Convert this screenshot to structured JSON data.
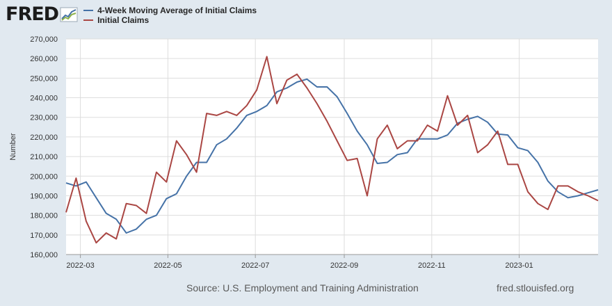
{
  "brand": {
    "logo_text": "FRED",
    "logo_icon": "chart-trend-icon"
  },
  "footer": {
    "source": "Source: U.S. Employment and Training Administration",
    "site": "fred.stlouisfed.org"
  },
  "colors": {
    "background": "#e1e9f0",
    "plot_bg": "#ffffff",
    "grid": "#dddddd",
    "series1": "#4572a7",
    "series2": "#aa4643"
  },
  "chart_data": {
    "type": "line",
    "ylabel": "Number",
    "ylim": [
      160000,
      270000
    ],
    "yticks": [
      160000,
      170000,
      180000,
      190000,
      200000,
      210000,
      220000,
      230000,
      240000,
      250000,
      260000,
      270000
    ],
    "ytick_labels": [
      "160,000",
      "170,000",
      "180,000",
      "190,000",
      "200,000",
      "210,000",
      "220,000",
      "230,000",
      "240,000",
      "250,000",
      "260,000",
      "270,000"
    ],
    "xlim": [
      "2022-02-19",
      "2023-02-25"
    ],
    "xticks": [
      "2022-03-01",
      "2022-05-01",
      "2022-07-01",
      "2022-09-01",
      "2022-11-01",
      "2023-01-01"
    ],
    "xtick_labels": [
      "2022-03",
      "2022-05",
      "2022-07",
      "2022-09",
      "2022-11",
      "2023-01"
    ],
    "grid": true,
    "legend_position": "top-left",
    "x": [
      "2022-02-19",
      "2022-02-26",
      "2022-03-05",
      "2022-03-12",
      "2022-03-19",
      "2022-03-26",
      "2022-04-02",
      "2022-04-09",
      "2022-04-16",
      "2022-04-23",
      "2022-04-30",
      "2022-05-07",
      "2022-05-14",
      "2022-05-21",
      "2022-05-28",
      "2022-06-04",
      "2022-06-11",
      "2022-06-18",
      "2022-06-25",
      "2022-07-02",
      "2022-07-09",
      "2022-07-16",
      "2022-07-23",
      "2022-07-30",
      "2022-08-06",
      "2022-08-13",
      "2022-08-20",
      "2022-08-27",
      "2022-09-03",
      "2022-09-10",
      "2022-09-17",
      "2022-09-24",
      "2022-10-01",
      "2022-10-08",
      "2022-10-15",
      "2022-10-22",
      "2022-10-29",
      "2022-11-05",
      "2022-11-12",
      "2022-11-19",
      "2022-11-26",
      "2022-12-03",
      "2022-12-10",
      "2022-12-17",
      "2022-12-24",
      "2022-12-31",
      "2023-01-07",
      "2023-01-14",
      "2023-01-21",
      "2023-01-28",
      "2023-02-04",
      "2023-02-11",
      "2023-02-18",
      "2023-02-25"
    ],
    "series": [
      {
        "name": "4-Week Moving Average of Initial Claims",
        "values": [
          196500,
          195000,
          197000,
          189000,
          181000,
          178000,
          171000,
          173000,
          178000,
          180000,
          188500,
          191000,
          200000,
          207000,
          207000,
          216000,
          219000,
          224500,
          231000,
          233000,
          236000,
          243000,
          245000,
          248000,
          249500,
          245500,
          245500,
          240500,
          232000,
          223000,
          216000,
          206500,
          207000,
          211000,
          212000,
          219000,
          219000,
          219000,
          221000,
          227000,
          229000,
          230500,
          227500,
          221500,
          221000,
          214500,
          213000,
          207000,
          197500,
          192000,
          189000,
          190000,
          191500,
          193000
        ]
      },
      {
        "name": "Initial Claims",
        "values": [
          181500,
          199000,
          177000,
          166000,
          171000,
          168000,
          186000,
          185000,
          181000,
          202000,
          197000,
          218000,
          211000,
          202000,
          232000,
          231000,
          233000,
          231000,
          236000,
          244000,
          261000,
          237000,
          249000,
          252000,
          245000,
          237000,
          228000,
          218000,
          208000,
          209000,
          190000,
          219000,
          226000,
          214000,
          218000,
          218000,
          226000,
          223000,
          241000,
          226000,
          231000,
          212000,
          216000,
          223000,
          206000,
          206000,
          192000,
          186000,
          183000,
          195000,
          195000,
          192000,
          190000,
          187500
        ]
      }
    ]
  }
}
